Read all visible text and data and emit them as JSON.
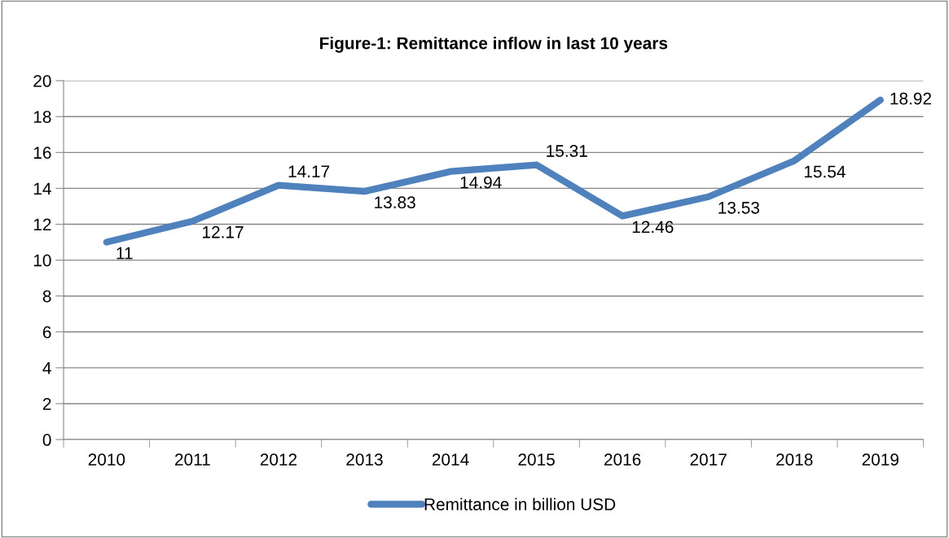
{
  "chart_data": {
    "type": "line",
    "title": "Figure-1: Remittance inflow in last 10 years",
    "categories": [
      "2010",
      "2011",
      "2012",
      "2013",
      "2014",
      "2015",
      "2016",
      "2017",
      "2018",
      "2019"
    ],
    "series": [
      {
        "name": "Remittance in billion USD",
        "color": "#4f81bd",
        "values": [
          11,
          12.17,
          14.17,
          13.83,
          14.94,
          15.31,
          12.46,
          13.53,
          15.54,
          18.92
        ]
      }
    ],
    "ylim": [
      0,
      20
    ],
    "yticks": [
      0,
      2,
      4,
      6,
      8,
      10,
      12,
      14,
      16,
      18,
      20
    ],
    "grid": "y",
    "legend": "bottom",
    "data_labels": true,
    "marker": "none",
    "line_style": "solid"
  }
}
